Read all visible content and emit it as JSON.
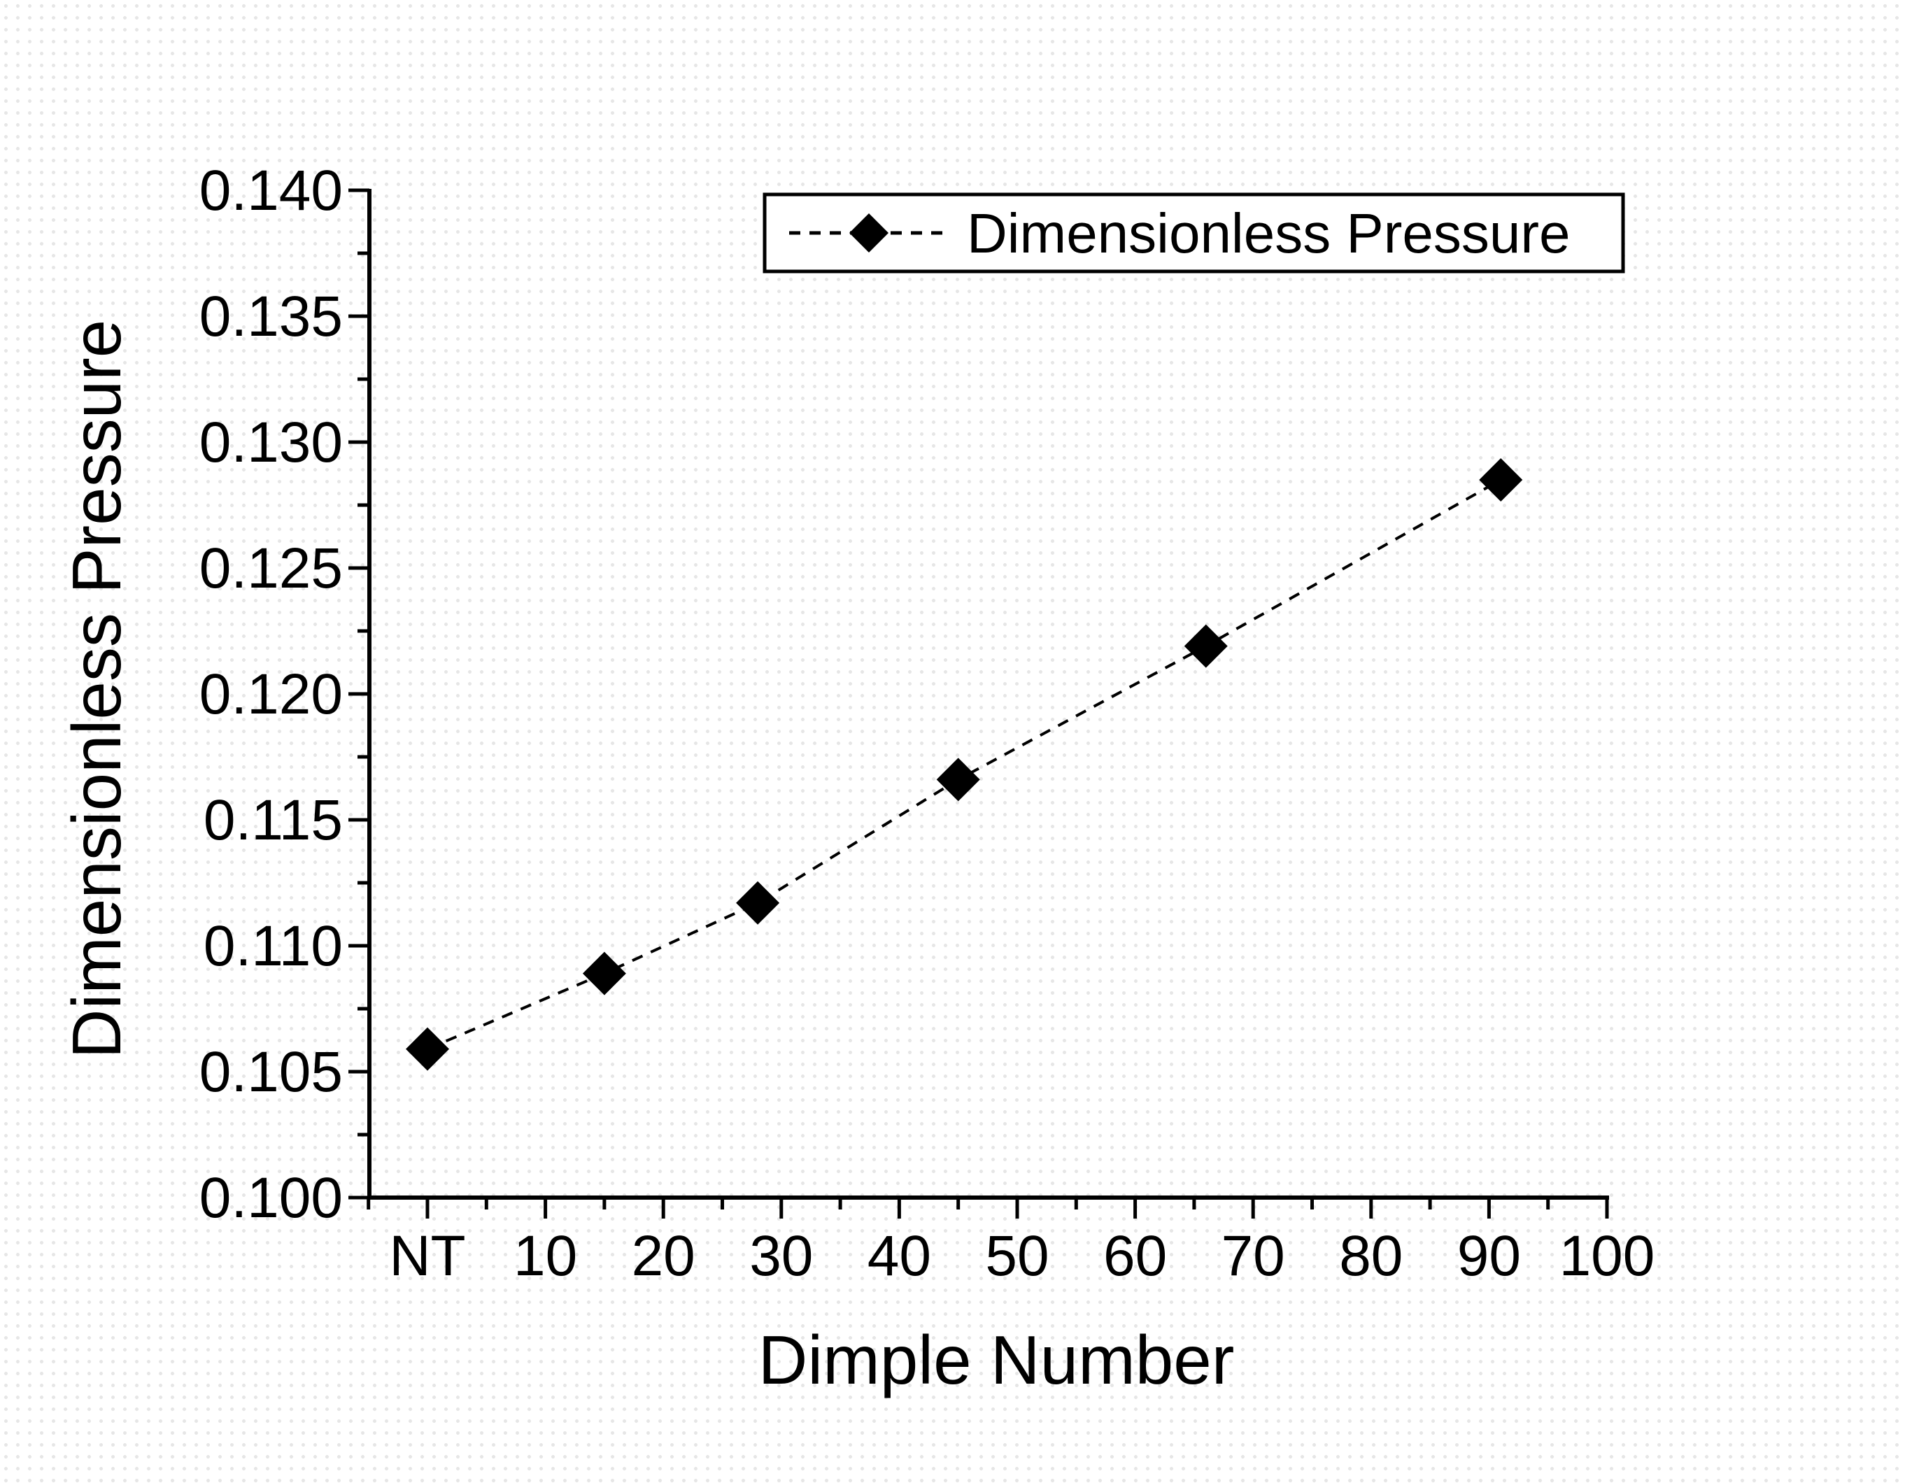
{
  "figure": {
    "background_color": "#ffffff",
    "background_dot_color": "#e6e6e6",
    "axis_color": "#000000",
    "marker_color": "#000000"
  },
  "chart_data": {
    "type": "line",
    "title": "",
    "xlabel": "Dimple Number",
    "ylabel": "Dimensionless Pressure",
    "grid": false,
    "legend": {
      "label": "Dimensionless Pressure",
      "position": "top-center",
      "marker": "diamond",
      "line_style": "dashed"
    },
    "x_axis": {
      "range": [
        -5,
        100.2
      ],
      "tick_values": [
        0,
        10,
        20,
        30,
        40,
        50,
        60,
        70,
        80,
        90,
        100
      ],
      "tick_labels": [
        "NT",
        "10",
        "20",
        "30",
        "40",
        "50",
        "60",
        "70",
        "80",
        "90",
        "100"
      ],
      "minor_tick_values": [
        -5,
        5,
        15,
        25,
        35,
        45,
        55,
        65,
        75,
        85,
        95
      ]
    },
    "y_axis": {
      "range": [
        0.1,
        0.14
      ],
      "major_step": 0.005,
      "minor_step": 0.0025,
      "tick_values": [
        0.1,
        0.105,
        0.11,
        0.115,
        0.12,
        0.125,
        0.13,
        0.135,
        0.14
      ],
      "tick_labels": [
        "0.100",
        "0.105",
        "0.110",
        "0.115",
        "0.120",
        "0.125",
        "0.130",
        "0.135",
        "0.140"
      ],
      "minor_tick_values": [
        0.1025,
        0.1075,
        0.1125,
        0.1175,
        0.1225,
        0.1275,
        0.1325,
        0.1375
      ]
    },
    "series": [
      {
        "name": "Dimensionless Pressure",
        "marker": "diamond",
        "line_style": "dashed",
        "color": "#000000",
        "points": [
          {
            "x_label": "NT",
            "x": 0,
            "y": 0.1059
          },
          {
            "x_label": "15",
            "x": 15,
            "y": 0.1089
          },
          {
            "x_label": "28",
            "x": 28,
            "y": 0.1117
          },
          {
            "x_label": "45",
            "x": 45,
            "y": 0.1166
          },
          {
            "x_label": "66",
            "x": 66,
            "y": 0.1219
          },
          {
            "x_label": "91",
            "x": 91,
            "y": 0.1285
          }
        ]
      }
    ]
  }
}
